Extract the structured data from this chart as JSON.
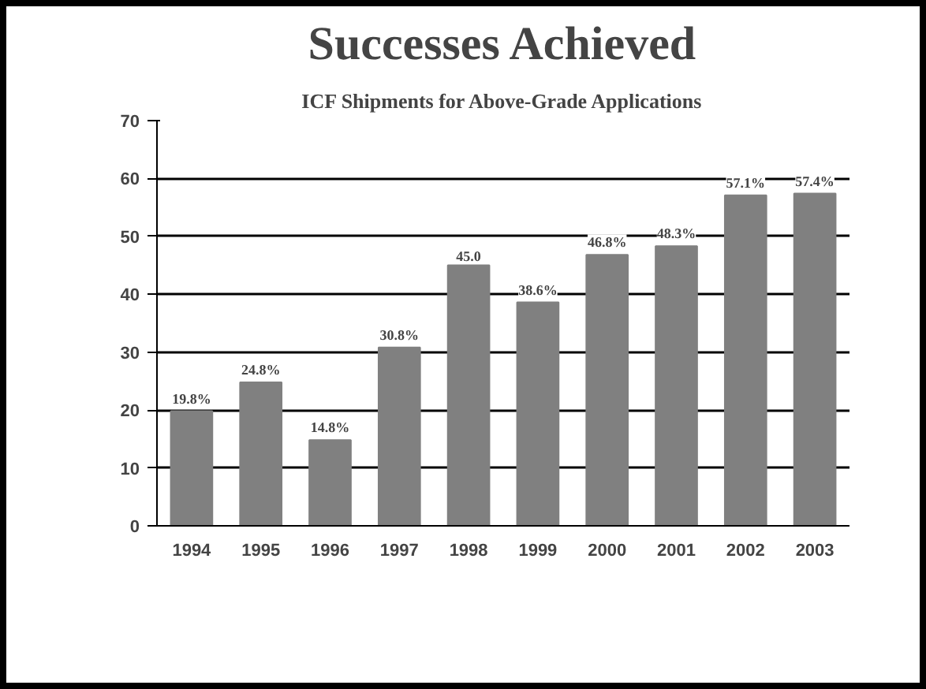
{
  "chart_data": {
    "type": "bar",
    "title": "Successes Achieved",
    "subtitle": "ICF Shipments for Above-Grade Applications",
    "categories": [
      "1994",
      "1995",
      "1996",
      "1997",
      "1998",
      "1999",
      "2000",
      "2001",
      "2002",
      "2003"
    ],
    "values": [
      19.8,
      24.8,
      14.8,
      30.8,
      45.0,
      38.6,
      46.8,
      48.3,
      57.1,
      57.4
    ],
    "value_labels": [
      "19.8%",
      "24.8%",
      "14.8%",
      "30.8%",
      "45.0",
      "38.6%",
      "46.8%",
      "48.3%",
      "57.1%",
      "57.4%"
    ],
    "color": "#808080",
    "ylim": [
      0,
      70
    ],
    "yticks": [
      0,
      10,
      20,
      30,
      40,
      50,
      60,
      70
    ],
    "grid": "y"
  }
}
